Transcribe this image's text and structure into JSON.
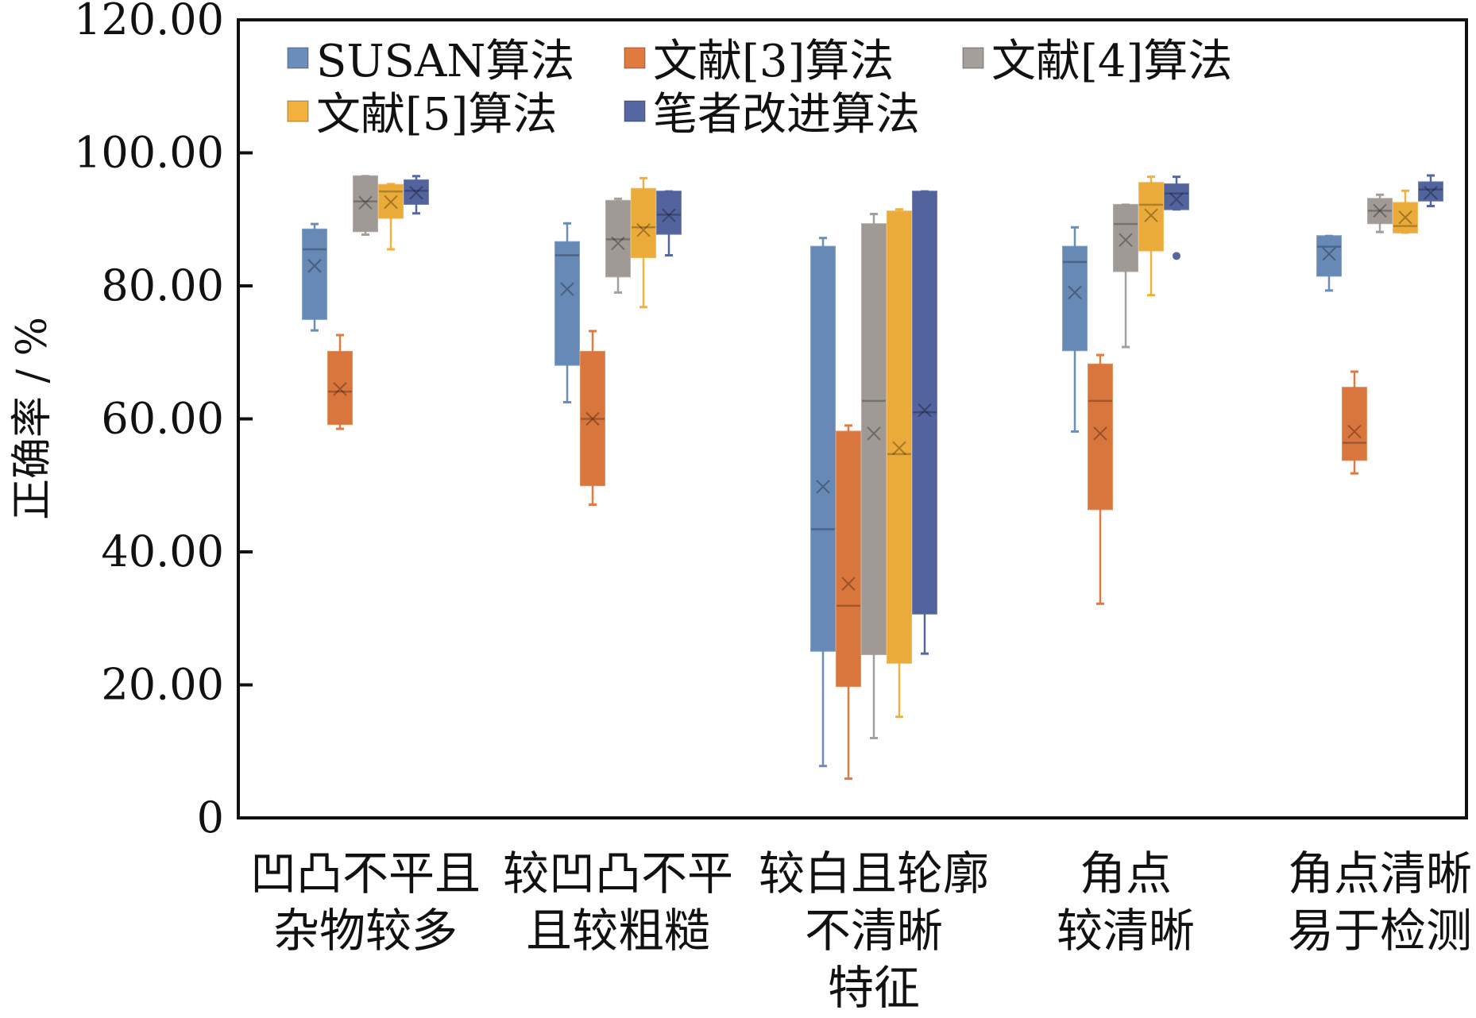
{
  "chart_data": {
    "type": "box",
    "title": "",
    "xlabel": "",
    "ylabel": "正确率 / %",
    "ylim": [
      0,
      120
    ],
    "yticks": [
      "0",
      "20.00",
      "40.00",
      "60.00",
      "80.00",
      "100.00",
      "120.00"
    ],
    "ytick_values": [
      0,
      20,
      40,
      60,
      80,
      100,
      120
    ],
    "legend_position": "top-left",
    "categories": [
      [
        "凹凸不平且",
        "杂物较多"
      ],
      [
        "较凹凸不平",
        "且较粗糙"
      ],
      [
        "较白且轮廓",
        "不清晰",
        "特征"
      ],
      [
        "角点",
        "较清晰"
      ],
      [
        "角点清晰",
        "易于检测"
      ]
    ],
    "series": [
      {
        "name": "SUSAN算法",
        "color": "#6a8dbb",
        "boxes": [
          {
            "min": 73.3,
            "q1": 75.0,
            "median": 85.5,
            "q3": 88.5,
            "max": 89.3,
            "mean": 83.0
          },
          {
            "min": 62.5,
            "q1": 68.1,
            "median": 84.6,
            "q3": 86.6,
            "max": 89.4,
            "mean": 79.5
          },
          {
            "min": 7.8,
            "q1": 25.1,
            "median": 43.4,
            "q3": 85.9,
            "max": 87.2,
            "mean": 49.8
          },
          {
            "min": 58.1,
            "q1": 70.3,
            "median": 83.6,
            "q3": 85.9,
            "max": 88.8,
            "mean": 79.0
          },
          {
            "min": 79.3,
            "q1": 81.5,
            "median": 85.9,
            "q3": 87.5,
            "max": 87.5,
            "mean": 84.8
          }
        ]
      },
      {
        "name": "文献[3]算法",
        "color": "#e07a3f",
        "boxes": [
          {
            "min": 58.5,
            "q1": 59.2,
            "median": 64.1,
            "q3": 70.1,
            "max": 72.6,
            "mean": 64.5
          },
          {
            "min": 47.1,
            "q1": 50.0,
            "median": 60.0,
            "q3": 70.1,
            "max": 73.2,
            "mean": 60.0
          },
          {
            "min": 5.9,
            "q1": 19.8,
            "median": 31.9,
            "q3": 58.1,
            "max": 59.0,
            "mean": 35.2
          },
          {
            "min": 32.2,
            "q1": 46.4,
            "median": 62.7,
            "q3": 68.2,
            "max": 69.6,
            "mean": 57.8
          },
          {
            "min": 51.8,
            "q1": 53.8,
            "median": 56.4,
            "q3": 64.7,
            "max": 67.1,
            "mean": 58.1
          }
        ]
      },
      {
        "name": "文献[4]算法",
        "color": "#a59e9a",
        "boxes": [
          {
            "min": 87.7,
            "q1": 88.2,
            "median": 92.7,
            "q3": 96.5,
            "max": 96.5,
            "mean": 92.5
          },
          {
            "min": 79.0,
            "q1": 81.4,
            "median": 87.0,
            "q3": 92.8,
            "max": 93.1,
            "mean": 86.4
          },
          {
            "min": 12.0,
            "q1": 24.6,
            "median": 62.7,
            "q3": 89.3,
            "max": 90.8,
            "mean": 57.8
          },
          {
            "min": 70.8,
            "q1": 82.2,
            "median": 89.3,
            "q3": 92.2,
            "max": 92.2,
            "mean": 86.9
          },
          {
            "min": 88.1,
            "q1": 89.4,
            "median": 91.3,
            "q3": 93.1,
            "max": 93.7,
            "mean": 91.3
          }
        ]
      },
      {
        "name": "文献[5]算法",
        "color": "#f2b03c",
        "boxes": [
          {
            "min": 85.5,
            "q1": 90.2,
            "median": 94.2,
            "q3": 95.2,
            "max": 95.3,
            "mean": 92.6
          },
          {
            "min": 76.8,
            "q1": 84.3,
            "median": 88.8,
            "q3": 94.6,
            "max": 96.2,
            "mean": 88.4
          },
          {
            "min": 15.2,
            "q1": 23.3,
            "median": 54.7,
            "q3": 91.2,
            "max": 91.5,
            "mean": 55.6
          },
          {
            "min": 78.6,
            "q1": 85.3,
            "median": 92.2,
            "q3": 95.5,
            "max": 96.4,
            "mean": 90.6
          },
          {
            "min": 88.0,
            "q1": 88.0,
            "median": 89.0,
            "q3": 92.5,
            "max": 94.3,
            "mean": 90.3
          }
        ]
      },
      {
        "name": "笔者改进算法",
        "color": "#5566a3",
        "boxes": [
          {
            "min": 90.9,
            "q1": 92.3,
            "median": 94.3,
            "q3": 95.9,
            "max": 96.5,
            "mean": 94.0
          },
          {
            "min": 84.6,
            "q1": 87.8,
            "median": 90.7,
            "q3": 94.2,
            "max": 94.2,
            "mean": 90.6
          },
          {
            "min": 24.7,
            "q1": 30.7,
            "median": 61.0,
            "q3": 94.2,
            "max": 94.2,
            "mean": 61.3
          },
          {
            "min": 91.5,
            "q1": 91.5,
            "median": 93.9,
            "q3": 95.3,
            "max": 96.4,
            "mean": 93.0,
            "outliers": [
              84.5
            ]
          },
          {
            "min": 92.0,
            "q1": 92.8,
            "median": 94.5,
            "q3": 95.6,
            "max": 96.6,
            "mean": 94.0
          }
        ]
      }
    ]
  }
}
